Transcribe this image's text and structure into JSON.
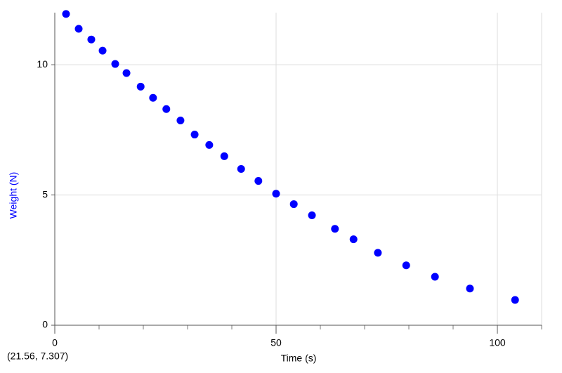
{
  "chart_data": {
    "type": "scatter",
    "x_label": "Time (s)",
    "y_label": "Weight (N)",
    "status": "(21.56, 7.307)",
    "series": [
      {
        "name": "Weight",
        "color": "#0000ff",
        "x": [
          2.54,
          5.4,
          8.25,
          10.8,
          13.65,
          16.2,
          19.4,
          22.2,
          25.2,
          28.4,
          31.6,
          34.9,
          38.3,
          42.1,
          46.0,
          50.0,
          54.0,
          58.1,
          63.3,
          67.5,
          73.0,
          79.4,
          85.9,
          93.8,
          104.0
        ],
        "values": [
          11.95,
          11.38,
          10.97,
          10.54,
          10.03,
          9.68,
          9.16,
          8.73,
          8.3,
          7.86,
          7.32,
          6.92,
          6.49,
          6.0,
          5.54,
          5.05,
          4.65,
          4.22,
          3.7,
          3.3,
          2.78,
          2.3,
          1.86,
          1.41,
          0.97
        ]
      }
    ],
    "xlim": [
      0,
      110
    ],
    "ylim": [
      0,
      12
    ],
    "xticks": [
      0,
      50,
      100
    ],
    "yticks": [
      0,
      5,
      10
    ],
    "x_minor_ticks": [
      10,
      20,
      30,
      40,
      60,
      70,
      80,
      90,
      110
    ],
    "grid": true
  }
}
